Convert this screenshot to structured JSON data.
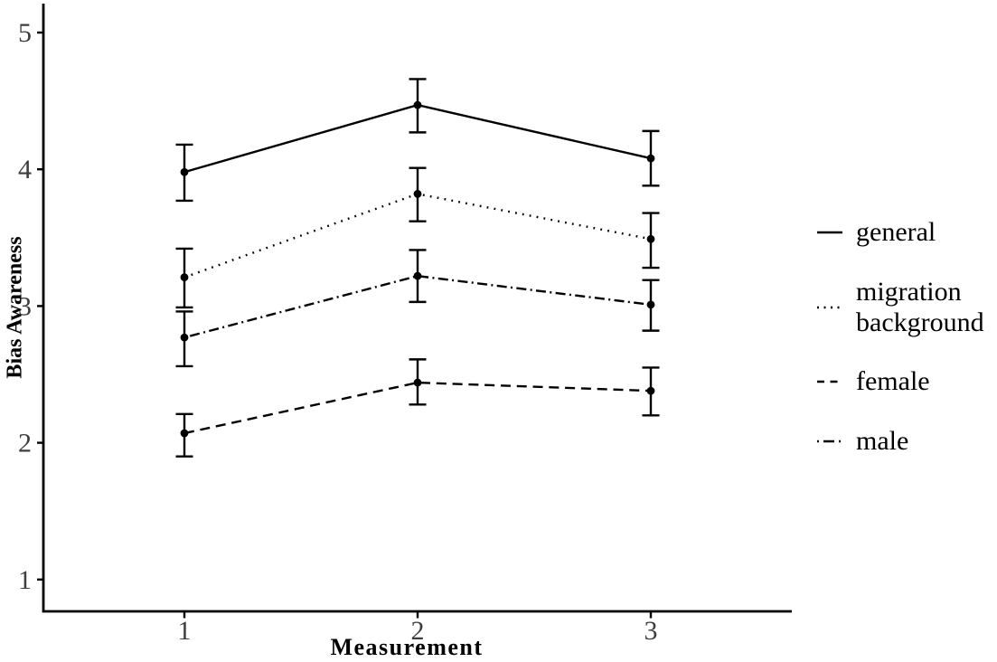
{
  "chart_data": {
    "type": "line",
    "title": "",
    "xlabel": "Measurement",
    "ylabel": "Bias Awareness",
    "x": [
      1,
      2,
      3
    ],
    "xticks": [
      "1",
      "2",
      "3"
    ],
    "yticks": [
      "1",
      "2",
      "3",
      "4",
      "5"
    ],
    "xlim": [
      0.4,
      3.6
    ],
    "ylim": [
      0.8,
      5.2
    ],
    "grid": false,
    "legend_position": "right",
    "marker": "filled-circle",
    "series": [
      {
        "name": "general",
        "linetype": "solid",
        "values": [
          3.98,
          4.47,
          4.08
        ],
        "error_lower": [
          3.77,
          4.27,
          3.88
        ],
        "error_upper": [
          4.18,
          4.66,
          4.28
        ]
      },
      {
        "name": "migration background",
        "linetype": "dotted",
        "values": [
          3.21,
          3.82,
          3.49
        ],
        "error_lower": [
          2.99,
          3.62,
          3.28
        ],
        "error_upper": [
          3.42,
          4.01,
          3.68
        ]
      },
      {
        "name": "female",
        "linetype": "dashed",
        "values": [
          2.07,
          2.44,
          2.38
        ],
        "error_lower": [
          1.9,
          2.28,
          2.2
        ],
        "error_upper": [
          2.21,
          2.61,
          2.55
        ]
      },
      {
        "name": "male",
        "linetype": "dotdash",
        "values": [
          2.77,
          3.22,
          3.01
        ],
        "error_lower": [
          2.56,
          3.03,
          2.82
        ],
        "error_upper": [
          2.96,
          3.41,
          3.19
        ]
      }
    ],
    "colors": {
      "series_color": "#000000",
      "axis_color": "#000000",
      "tick_label_color": "#3d3d3d",
      "background": "#ffffff"
    }
  }
}
